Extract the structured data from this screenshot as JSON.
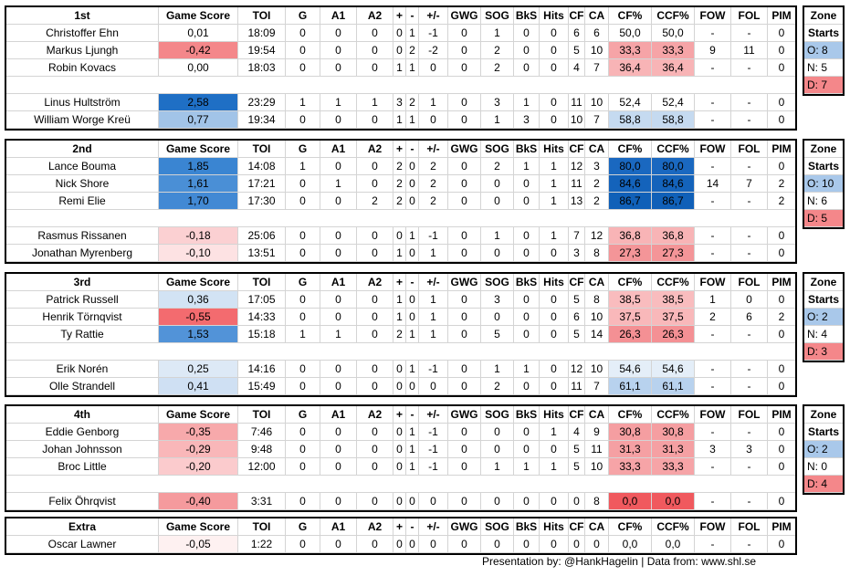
{
  "columns": [
    "Game Score",
    "TOI",
    "G",
    "A1",
    "A2",
    "+",
    "-",
    "+/-",
    "GWG",
    "SOG",
    "BkS",
    "Hits",
    "CF",
    "CA",
    "CF%",
    "CCF%",
    "FOW",
    "FOL",
    "PIM"
  ],
  "zone_title_1": "Zone",
  "zone_title_2": "Starts",
  "lines": [
    {
      "name": "1st",
      "top_rows": [
        {
          "player": "Christoffer Ehn",
          "gs": "0,01",
          "toi": "18:09",
          "g": "0",
          "a1": "0",
          "a2": "0",
          "plus": "0",
          "minus": "1",
          "pm": "-1",
          "gwg": "0",
          "sog": "1",
          "bks": "0",
          "hits": "0",
          "cf": "6",
          "ca": "6",
          "cfp": "50,0",
          "ccfp": "50,0",
          "fow": "-",
          "fol": "-",
          "pim": "0",
          "gs_color": "#ffffff",
          "cf_color": "#ffffff"
        },
        {
          "player": "Markus Ljungh",
          "gs": "-0,42",
          "toi": "19:54",
          "g": "0",
          "a1": "0",
          "a2": "0",
          "plus": "0",
          "minus": "2",
          "pm": "-2",
          "gwg": "0",
          "sog": "2",
          "bks": "0",
          "hits": "0",
          "cf": "5",
          "ca": "10",
          "cfp": "33,3",
          "ccfp": "33,3",
          "fow": "9",
          "fol": "11",
          "pim": "0",
          "gs_color": "#f4878a",
          "cf_color": "#f6a4a7"
        },
        {
          "player": "Robin Kovacs",
          "gs": "0,00",
          "toi": "18:03",
          "g": "0",
          "a1": "0",
          "a2": "0",
          "plus": "1",
          "minus": "1",
          "pm": "0",
          "gwg": "0",
          "sog": "2",
          "bks": "0",
          "hits": "0",
          "cf": "4",
          "ca": "7",
          "cfp": "36,4",
          "ccfp": "36,4",
          "fow": "-",
          "fol": "-",
          "pim": "0",
          "gs_color": "#ffffff",
          "cf_color": "#f8b4b6"
        }
      ],
      "bottom_rows": [
        {
          "player": "Linus Hultström",
          "gs": "2,58",
          "toi": "23:29",
          "g": "1",
          "a1": "1",
          "a2": "1",
          "plus": "3",
          "minus": "2",
          "pm": "1",
          "gwg": "0",
          "sog": "3",
          "bks": "1",
          "hits": "0",
          "cf": "11",
          "ca": "10",
          "cfp": "52,4",
          "ccfp": "52,4",
          "fow": "-",
          "fol": "-",
          "pim": "0",
          "gs_color": "#1f6fc5",
          "cf_color": "#ffffff"
        },
        {
          "player": "William Worge Kreü",
          "gs": "0,77",
          "toi": "19:34",
          "g": "0",
          "a1": "0",
          "a2": "0",
          "plus": "1",
          "minus": "1",
          "pm": "0",
          "gwg": "0",
          "sog": "1",
          "bks": "3",
          "hits": "0",
          "cf": "10",
          "ca": "7",
          "cfp": "58,8",
          "ccfp": "58,8",
          "fow": "-",
          "fol": "-",
          "pim": "0",
          "gs_color": "#a2c4e8",
          "cf_color": "#c5daf0"
        }
      ],
      "zone": {
        "o": "O: 8",
        "n": "N: 5",
        "d": "D: 7"
      }
    },
    {
      "name": "2nd",
      "top_rows": [
        {
          "player": "Lance Bouma",
          "gs": "1,85",
          "toi": "14:08",
          "g": "1",
          "a1": "0",
          "a2": "0",
          "plus": "2",
          "minus": "0",
          "pm": "2",
          "gwg": "0",
          "sog": "2",
          "bks": "1",
          "hits": "1",
          "cf": "12",
          "ca": "3",
          "cfp": "80,0",
          "ccfp": "80,0",
          "fow": "-",
          "fol": "-",
          "pim": "0",
          "gs_color": "#3a85d2",
          "cf_color": "#1a68c0"
        },
        {
          "player": "Nick Shore",
          "gs": "1,61",
          "toi": "17:21",
          "g": "0",
          "a1": "1",
          "a2": "0",
          "plus": "2",
          "minus": "0",
          "pm": "2",
          "gwg": "0",
          "sog": "0",
          "bks": "0",
          "hits": "1",
          "cf": "11",
          "ca": "2",
          "cfp": "84,6",
          "ccfp": "84,6",
          "fow": "14",
          "fol": "7",
          "pim": "2",
          "gs_color": "#4a8fd6",
          "cf_color": "#1463bb"
        },
        {
          "player": "Remi Elie",
          "gs": "1,70",
          "toi": "17:30",
          "g": "0",
          "a1": "0",
          "a2": "2",
          "plus": "2",
          "minus": "0",
          "pm": "2",
          "gwg": "0",
          "sog": "0",
          "bks": "0",
          "hits": "1",
          "cf": "13",
          "ca": "2",
          "cfp": "86,7",
          "ccfp": "86,7",
          "fow": "-",
          "fol": "-",
          "pim": "2",
          "gs_color": "#4289d4",
          "cf_color": "#1060b8"
        }
      ],
      "bottom_rows": [
        {
          "player": "Rasmus Rissanen",
          "gs": "-0,18",
          "toi": "25:06",
          "g": "0",
          "a1": "0",
          "a2": "0",
          "plus": "0",
          "minus": "1",
          "pm": "-1",
          "gwg": "0",
          "sog": "1",
          "bks": "0",
          "hits": "1",
          "cf": "7",
          "ca": "12",
          "cfp": "36,8",
          "ccfp": "36,8",
          "fow": "-",
          "fol": "-",
          "pim": "0",
          "gs_color": "#fbd0d2",
          "cf_color": "#f8b4b6"
        },
        {
          "player": "Jonathan Myrenberg",
          "gs": "-0,10",
          "toi": "13:51",
          "g": "0",
          "a1": "0",
          "a2": "0",
          "plus": "1",
          "minus": "0",
          "pm": "1",
          "gwg": "0",
          "sog": "0",
          "bks": "0",
          "hits": "0",
          "cf": "3",
          "ca": "8",
          "cfp": "27,3",
          "ccfp": "27,3",
          "fow": "-",
          "fol": "-",
          "pim": "0",
          "gs_color": "#fde2e3",
          "cf_color": "#f49598"
        }
      ],
      "zone": {
        "o": "O: 10",
        "n": "N: 6",
        "d": "D: 5"
      }
    },
    {
      "name": "3rd",
      "top_rows": [
        {
          "player": "Patrick Russell",
          "gs": "0,36",
          "toi": "17:05",
          "g": "0",
          "a1": "0",
          "a2": "0",
          "plus": "1",
          "minus": "0",
          "pm": "1",
          "gwg": "0",
          "sog": "3",
          "bks": "0",
          "hits": "0",
          "cf": "5",
          "ca": "8",
          "cfp": "38,5",
          "ccfp": "38,5",
          "fow": "1",
          "fol": "0",
          "pim": "0",
          "gs_color": "#d2e3f4",
          "cf_color": "#f9bcbe"
        },
        {
          "player": "Henrik Törnqvist",
          "gs": "-0,55",
          "toi": "14:33",
          "g": "0",
          "a1": "0",
          "a2": "0",
          "plus": "1",
          "minus": "0",
          "pm": "1",
          "gwg": "0",
          "sog": "0",
          "bks": "0",
          "hits": "0",
          "cf": "6",
          "ca": "10",
          "cfp": "37,5",
          "ccfp": "37,5",
          "fow": "2",
          "fol": "6",
          "pim": "2",
          "gs_color": "#f36b6f",
          "cf_color": "#f9b8ba"
        },
        {
          "player": "Ty Rattie",
          "gs": "1,53",
          "toi": "15:18",
          "g": "1",
          "a1": "1",
          "a2": "0",
          "plus": "2",
          "minus": "1",
          "pm": "1",
          "gwg": "0",
          "sog": "5",
          "bks": "0",
          "hits": "0",
          "cf": "5",
          "ca": "14",
          "cfp": "26,3",
          "ccfp": "26,3",
          "fow": "-",
          "fol": "-",
          "pim": "0",
          "gs_color": "#5293d8",
          "cf_color": "#f49094"
        }
      ],
      "bottom_rows": [
        {
          "player": "Erik Norén",
          "gs": "0,25",
          "toi": "14:16",
          "g": "0",
          "a1": "0",
          "a2": "0",
          "plus": "0",
          "minus": "1",
          "pm": "-1",
          "gwg": "0",
          "sog": "1",
          "bks": "1",
          "hits": "0",
          "cf": "12",
          "ca": "10",
          "cfp": "54,6",
          "ccfp": "54,6",
          "fow": "-",
          "fol": "-",
          "pim": "0",
          "gs_color": "#dde9f6",
          "cf_color": "#e4eef8"
        },
        {
          "player": "Olle Strandell",
          "gs": "0,41",
          "toi": "15:49",
          "g": "0",
          "a1": "0",
          "a2": "0",
          "plus": "0",
          "minus": "0",
          "pm": "0",
          "gwg": "0",
          "sog": "2",
          "bks": "0",
          "hits": "0",
          "cf": "11",
          "ca": "7",
          "cfp": "61,1",
          "ccfp": "61,1",
          "fow": "-",
          "fol": "-",
          "pim": "0",
          "gs_color": "#cfe0f3",
          "cf_color": "#b8d2ee"
        }
      ],
      "zone": {
        "o": "O: 2",
        "n": "N: 4",
        "d": "D: 3"
      }
    },
    {
      "name": "4th",
      "top_rows": [
        {
          "player": "Eddie Genborg",
          "gs": "-0,35",
          "toi": "7:46",
          "g": "0",
          "a1": "0",
          "a2": "0",
          "plus": "0",
          "minus": "1",
          "pm": "-1",
          "gwg": "0",
          "sog": "0",
          "bks": "0",
          "hits": "1",
          "cf": "4",
          "ca": "9",
          "cfp": "30,8",
          "ccfp": "30,8",
          "fow": "-",
          "fol": "-",
          "pim": "0",
          "gs_color": "#f7a9ab",
          "cf_color": "#f59ea1"
        },
        {
          "player": "Johan Johnsson",
          "gs": "-0,29",
          "toi": "9:48",
          "g": "0",
          "a1": "0",
          "a2": "0",
          "plus": "0",
          "minus": "1",
          "pm": "-1",
          "gwg": "0",
          "sog": "0",
          "bks": "0",
          "hits": "0",
          "cf": "5",
          "ca": "11",
          "cfp": "31,3",
          "ccfp": "31,3",
          "fow": "3",
          "fol": "3",
          "pim": "0",
          "gs_color": "#f9b7b9",
          "cf_color": "#f5a0a3"
        },
        {
          "player": "Broc Little",
          "gs": "-0,20",
          "toi": "12:00",
          "g": "0",
          "a1": "0",
          "a2": "0",
          "plus": "0",
          "minus": "1",
          "pm": "-1",
          "gwg": "0",
          "sog": "1",
          "bks": "1",
          "hits": "1",
          "cf": "5",
          "ca": "10",
          "cfp": "33,3",
          "ccfp": "33,3",
          "fow": "-",
          "fol": "-",
          "pim": "0",
          "gs_color": "#fbcbcd",
          "cf_color": "#f6a4a7"
        }
      ],
      "bottom_rows": [
        {
          "player": "Felix Öhrqvist",
          "gs": "-0,40",
          "toi": "3:31",
          "g": "0",
          "a1": "0",
          "a2": "0",
          "plus": "0",
          "minus": "0",
          "pm": "0",
          "gwg": "0",
          "sog": "0",
          "bks": "0",
          "hits": "0",
          "cf": "0",
          "ca": "8",
          "cfp": "0,0",
          "ccfp": "0,0",
          "fow": "-",
          "fol": "-",
          "pim": "0",
          "gs_color": "#f59a9d",
          "cf_color": "#f0595e"
        }
      ],
      "zone": {
        "o": "O: 2",
        "n": "N: 0",
        "d": "D: 4"
      }
    },
    {
      "name": "Extra",
      "top_rows": [
        {
          "player": "Oscar Lawner",
          "gs": "-0,05",
          "toi": "1:22",
          "g": "0",
          "a1": "0",
          "a2": "0",
          "plus": "0",
          "minus": "0",
          "pm": "0",
          "gwg": "0",
          "sog": "0",
          "bks": "0",
          "hits": "0",
          "cf": "0",
          "ca": "0",
          "cfp": "0,0",
          "ccfp": "0,0",
          "fow": "-",
          "fol": "-",
          "pim": "0",
          "gs_color": "#fef1f1",
          "cf_color": "#ffffff"
        }
      ],
      "bottom_rows": []
    }
  ],
  "zone_colors": {
    "o": "#a9c8ea",
    "n": "#ffffff",
    "d": "#f4878a"
  },
  "footer": "Presentation by: @HankHagelin | Data from: www.shl.se"
}
